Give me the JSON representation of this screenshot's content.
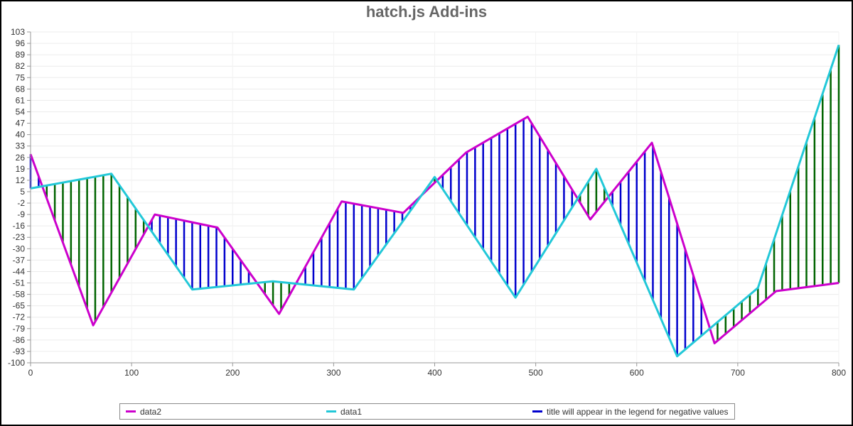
{
  "chart_data": {
    "type": "line",
    "title": "hatch.js Add-ins",
    "xlim": [
      0,
      800
    ],
    "ylim": [
      -100,
      103
    ],
    "x_ticks": [
      "0",
      "100",
      "200",
      "300",
      "400",
      "500",
      "600",
      "700",
      "800"
    ],
    "y_ticks": [
      "103",
      "96",
      "89",
      "82",
      "75",
      "68",
      "61",
      "54",
      "47",
      "40",
      "33",
      "26",
      "19",
      "12",
      "5",
      "-2",
      "-9",
      "-16",
      "-23",
      "-30",
      "-37",
      "-44",
      "-51",
      "-58",
      "-65",
      "-72",
      "-79",
      "-86",
      "-93",
      "-100"
    ],
    "grid": true,
    "legend_position": "bottom",
    "fill_positive_color": "#006400",
    "fill_negative_color": "#0000cd",
    "series": [
      {
        "name": "data2",
        "color": "#cc00cc",
        "points": [
          [
            0,
            28
          ],
          [
            62,
            -77
          ],
          [
            123,
            -9
          ],
          [
            185,
            -17
          ],
          [
            246,
            -70
          ],
          [
            308,
            -1
          ],
          [
            369,
            -8
          ],
          [
            431,
            29
          ],
          [
            492,
            51
          ],
          [
            554,
            -12
          ],
          [
            615,
            35
          ],
          [
            677,
            -88
          ],
          [
            738,
            -56
          ],
          [
            800,
            -51
          ]
        ]
      },
      {
        "name": "data1",
        "color": "#22c8d8",
        "points": [
          [
            0,
            7
          ],
          [
            80,
            16
          ],
          [
            160,
            -55
          ],
          [
            240,
            -50
          ],
          [
            320,
            -55
          ],
          [
            400,
            14
          ],
          [
            480,
            -60
          ],
          [
            560,
            19
          ],
          [
            640,
            -96
          ],
          [
            720,
            -54
          ],
          [
            800,
            95
          ]
        ]
      }
    ],
    "legend": [
      {
        "label": "data2",
        "color": "#cc00cc"
      },
      {
        "label": "data1",
        "color": "#22c8d8"
      },
      {
        "label": "title will appear in the legend for negative values",
        "color": "#0000cd"
      }
    ]
  }
}
